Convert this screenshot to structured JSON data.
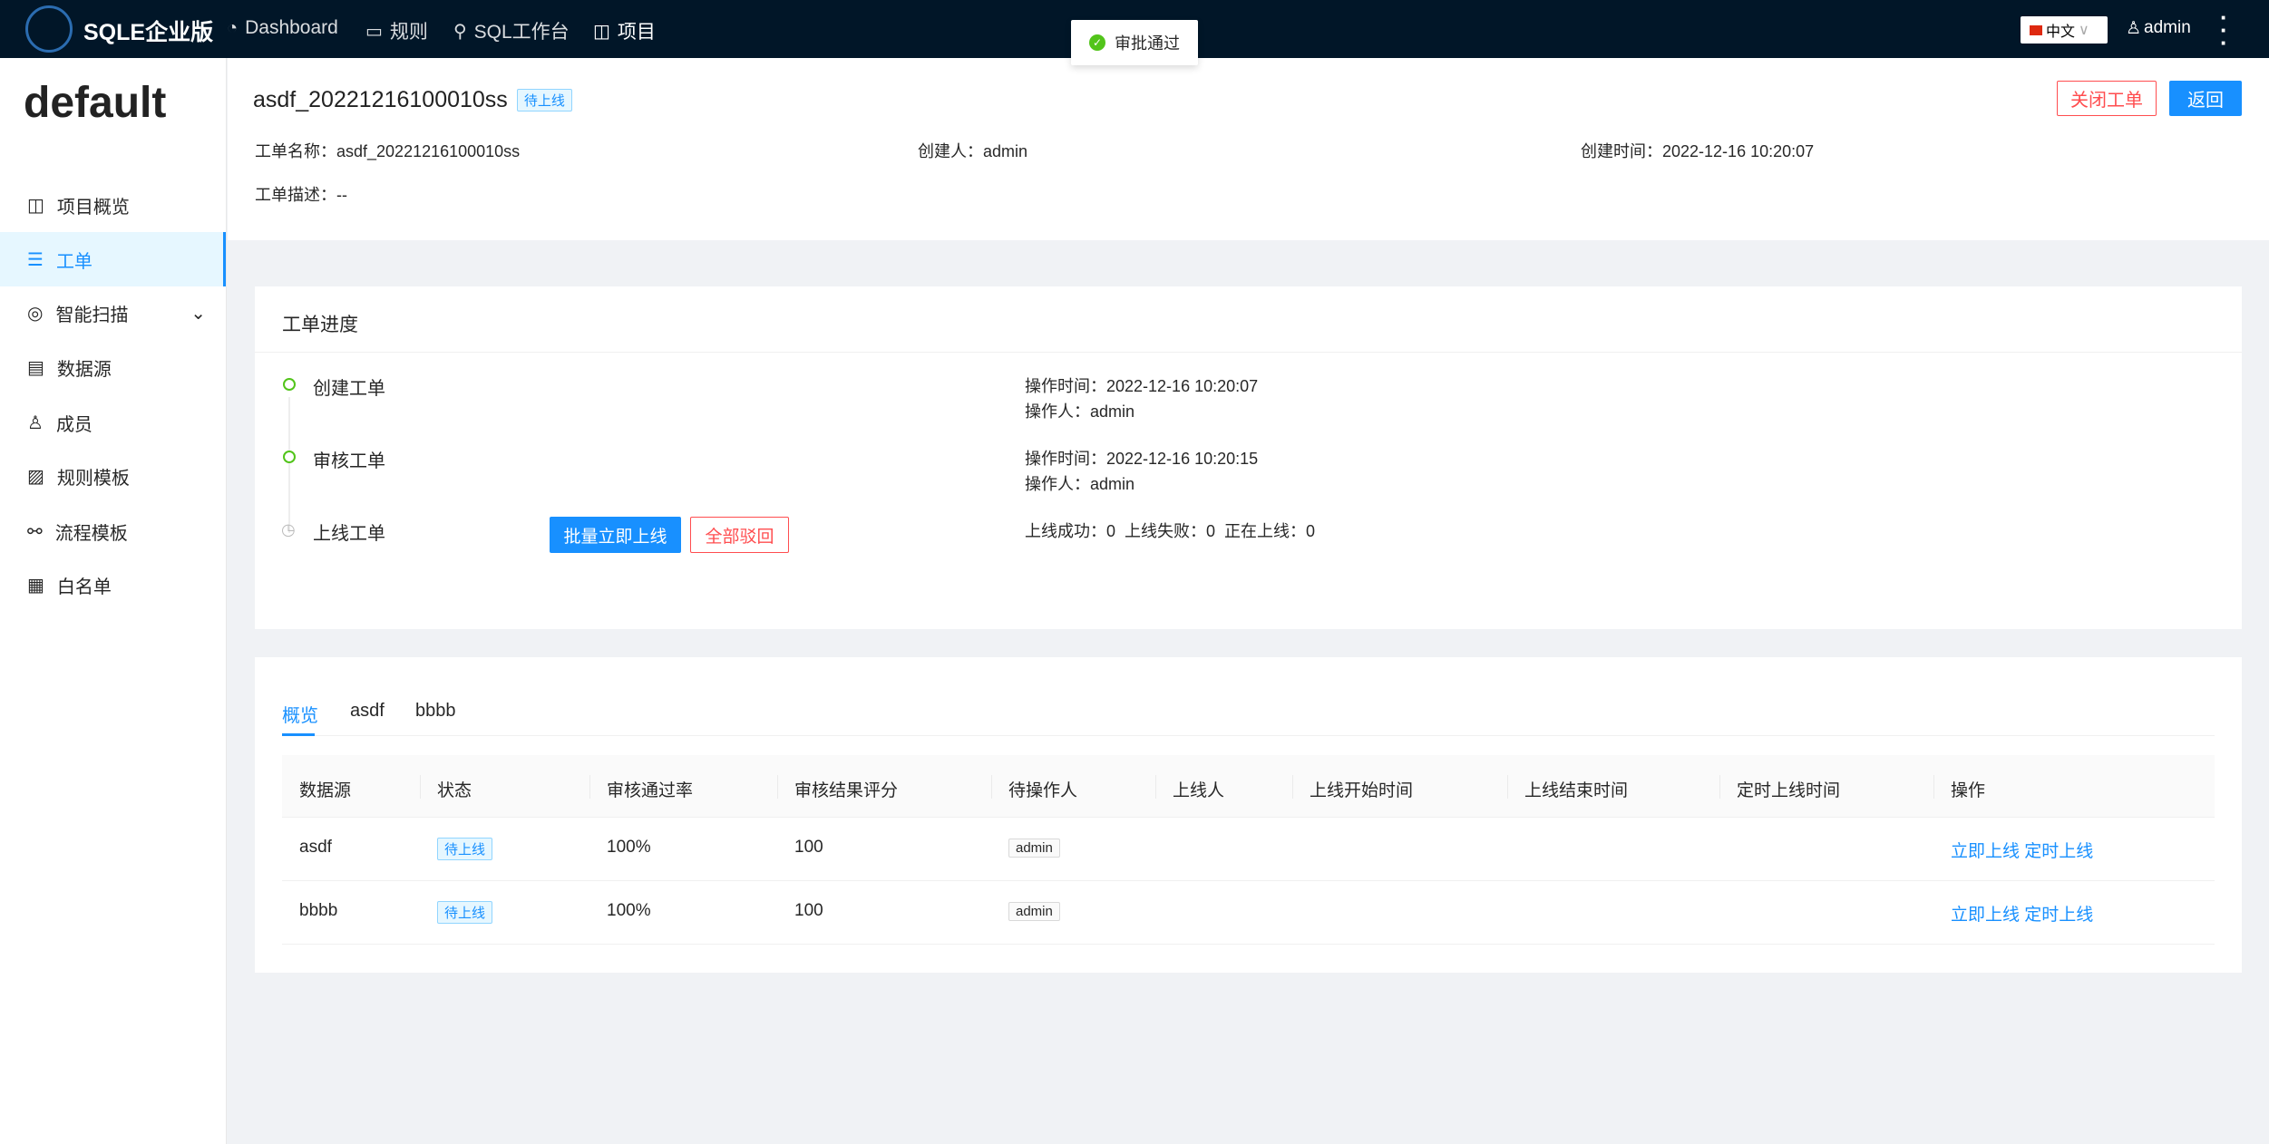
{
  "header": {
    "brand": "SQLE企业版",
    "nav": [
      {
        "label": "Dashboard",
        "icon": "pie-chart-icon"
      },
      {
        "label": "规则",
        "icon": "desktop-icon"
      },
      {
        "label": "SQL工作台",
        "icon": "search-icon"
      },
      {
        "label": "项目",
        "icon": "project-icon"
      }
    ],
    "language": "中文",
    "user": "admin"
  },
  "toast": {
    "text": "审批通过",
    "icon": "check-circle-icon"
  },
  "sidebar": {
    "project": "default",
    "items": [
      {
        "label": "项目概览",
        "icon": "project-icon"
      },
      {
        "label": "工单",
        "icon": "list-icon",
        "active": true
      },
      {
        "label": "智能扫描",
        "icon": "scan-icon",
        "has_submenu": true
      },
      {
        "label": "数据源",
        "icon": "database-icon"
      },
      {
        "label": "成员",
        "icon": "user-icon"
      },
      {
        "label": "规则模板",
        "icon": "template-icon"
      },
      {
        "label": "流程模板",
        "icon": "flow-icon"
      },
      {
        "label": "白名单",
        "icon": "whitelist-icon"
      }
    ]
  },
  "order": {
    "title": "asdf_20221216100010ss",
    "status": "待上线",
    "close_btn": "关闭工单",
    "back_btn": "返回",
    "name_label": "工单名称：",
    "name": "asdf_20221216100010ss",
    "creator_label": "创建人：",
    "creator": "admin",
    "created_label": "创建时间：",
    "created": "2022-12-16 10:20:07",
    "desc_label": "工单描述：",
    "desc": "--"
  },
  "progress": {
    "title": "工单进度",
    "steps": [
      {
        "label": "创建工单",
        "time": "操作时间：2022-12-16 10:20:07",
        "operator": "操作人：admin",
        "state": "done"
      },
      {
        "label": "审核工单",
        "time": "操作时间：2022-12-16 10:20:15",
        "operator": "操作人：admin",
        "state": "done"
      },
      {
        "label": "上线工单",
        "summary": "上线成功：0  上线失败：0  正在上线：0",
        "batch_btn": "批量立即上线",
        "reject_btn": "全部驳回",
        "state": "pending"
      }
    ]
  },
  "tabs": [
    "概览",
    "asdf",
    "bbbb"
  ],
  "table": {
    "columns": [
      "数据源",
      "状态",
      "审核通过率",
      "审核结果评分",
      "待操作人",
      "上线人",
      "上线开始时间",
      "上线结束时间",
      "定时上线时间",
      "操作"
    ],
    "rows": [
      {
        "datasource": "asdf",
        "status": "待上线",
        "pass_rate": "100%",
        "score": "100",
        "assignee": "admin",
        "action1": "立即上线",
        "action2": "定时上线"
      },
      {
        "datasource": "bbbb",
        "status": "待上线",
        "pass_rate": "100%",
        "score": "100",
        "assignee": "admin",
        "action1": "立即上线",
        "action2": "定时上线"
      }
    ]
  }
}
